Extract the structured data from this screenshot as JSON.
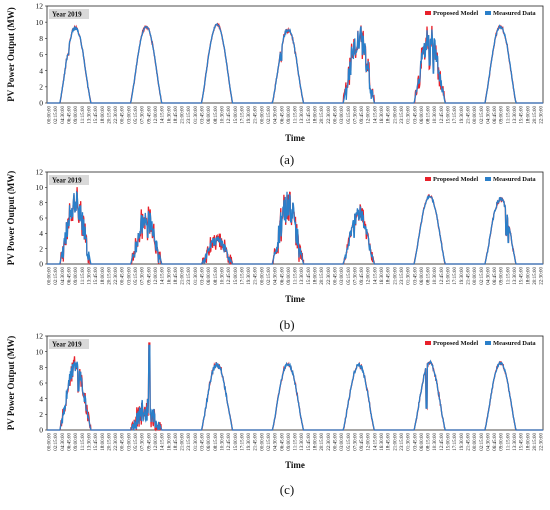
{
  "chart_data": [
    {
      "type": "line",
      "panel_label": "(a)",
      "year_label": "Year 2019",
      "ylabel": "PV Power Output (MW)",
      "xlabel": "Time",
      "ylim": [
        0,
        12
      ],
      "yticks": [
        0,
        2,
        4,
        6,
        8,
        10,
        12
      ],
      "xtick_labels": [
        "00:00:00",
        "02:15:00",
        "04:30:00",
        "06:45:00",
        "09:00:00",
        "11:15:00",
        "13:30:00",
        "15:45:00",
        "18:00:00",
        "20:15:00",
        "22:30:00",
        "00:45:00",
        "03:00:00",
        "05:15:00",
        "07:30:00",
        "09:45:00",
        "12:00:00",
        "14:15:00",
        "16:30:00",
        "18:45:00",
        "21:00:00",
        "23:15:00",
        "01:30:00",
        "03:45:00",
        "06:00:00",
        "08:15:00",
        "10:30:00",
        "12:45:00",
        "15:00:00",
        "17:15:00",
        "19:30:00",
        "21:45:00",
        "00:00:00",
        "02:15:00",
        "04:30:00",
        "06:45:00",
        "09:00:00",
        "11:15:00",
        "13:30:00",
        "15:45:00",
        "18:00:00",
        "20:15:00",
        "22:30:00",
        "00:45:00",
        "03:00:00",
        "05:15:00",
        "07:30:00",
        "09:45:00",
        "12:00:00",
        "14:15:00",
        "16:30:00",
        "18:45:00",
        "21:00:00",
        "23:15:00",
        "01:30:00",
        "03:45:00",
        "06:00:00",
        "08:15:00",
        "10:30:00",
        "12:45:00",
        "15:00:00",
        "17:15:00",
        "19:30:00",
        "21:45:00",
        "00:00:00",
        "02:15:00",
        "04:30:00",
        "06:45:00",
        "09:00:00",
        "11:15:00",
        "13:30:00",
        "15:45:00",
        "18:00:00",
        "20:15:00",
        "22:30:00"
      ],
      "legend": [
        "Proposed Model",
        "Measured Data"
      ],
      "legend_position": "top-right",
      "series": [
        {
          "name": "Proposed Model",
          "color": "#e8202a"
        },
        {
          "name": "Measured Data",
          "color": "#2a7fc9"
        }
      ],
      "days": [
        {
          "peak": 9.5,
          "noise": 0.5,
          "dips": [
            [
              0.18,
              5.0
            ],
            [
              0.27,
              3.5
            ]
          ]
        },
        {
          "peak": 9.5,
          "noise": 0.2,
          "dips": [
            [
              0.25,
              3.0
            ]
          ]
        },
        {
          "peak": 9.8,
          "noise": 0.2,
          "dips": []
        },
        {
          "peak": 9.3,
          "noise": 0.5,
          "dips": [
            [
              0.2,
              2.0
            ],
            [
              0.28,
              4.0
            ]
          ]
        },
        {
          "peak": 9.8,
          "noise": 3.5,
          "dips": [
            [
              0.35,
              2.0
            ],
            [
              0.42,
              3.5
            ],
            [
              0.5,
              3.0
            ]
          ]
        },
        {
          "peak": 9.7,
          "noise": 3.0,
          "dips": [
            [
              0.35,
              4.0
            ],
            [
              0.5,
              5.0
            ],
            [
              0.62,
              6.0
            ]
          ]
        },
        {
          "peak": 9.6,
          "noise": 0.3,
          "dips": []
        }
      ]
    },
    {
      "type": "line",
      "panel_label": "(b)",
      "year_label": "Year 2019",
      "ylabel": "PV Power Output (MW)",
      "xlabel": "Time",
      "ylim": [
        0,
        12
      ],
      "yticks": [
        0,
        2,
        4,
        6,
        8,
        10,
        12
      ],
      "xtick_labels": [
        "00:00:00",
        "02:15:00",
        "04:30:00",
        "06:45:00",
        "09:00:00",
        "11:15:00",
        "13:30:00",
        "15:45:00",
        "18:00:00",
        "20:15:00",
        "22:30:00",
        "00:45:00",
        "03:00:00",
        "05:15:00",
        "07:30:00",
        "09:45:00",
        "12:00:00",
        "14:15:00",
        "16:30:00",
        "18:45:00",
        "21:00:00",
        "23:15:00",
        "01:30:00",
        "03:45:00",
        "06:00:00",
        "08:15:00",
        "10:30:00",
        "12:45:00",
        "15:00:00",
        "17:15:00",
        "19:30:00",
        "21:45:00",
        "00:00:00",
        "02:15:00",
        "04:30:00",
        "06:45:00",
        "09:00:00",
        "11:15:00",
        "13:30:00",
        "15:45:00",
        "18:00:00",
        "20:15:00",
        "22:30:00",
        "00:45:00",
        "03:00:00",
        "05:15:00",
        "07:30:00",
        "09:45:00",
        "12:00:00",
        "14:15:00",
        "16:30:00",
        "18:45:00",
        "21:00:00",
        "23:15:00",
        "01:30:00",
        "03:45:00",
        "06:00:00",
        "08:15:00",
        "10:30:00",
        "12:45:00",
        "15:00:00",
        "17:15:00",
        "19:30:00",
        "21:45:00",
        "00:00:00",
        "02:15:00",
        "04:30:00",
        "06:45:00",
        "09:00:00",
        "11:15:00",
        "13:30:00",
        "15:45:00",
        "18:00:00",
        "20:15:00",
        "22:30:00"
      ],
      "legend": [
        "Proposed Model",
        "Measured Data"
      ],
      "legend_position": "top-right",
      "series": [
        {
          "name": "Proposed Model",
          "color": "#e8202a"
        },
        {
          "name": "Measured Data",
          "color": "#2a7fc9"
        }
      ],
      "days": [
        {
          "peak": 9.8,
          "noise": 3.5,
          "dips": [
            [
              0.25,
              2.5
            ],
            [
              0.7,
              3.0
            ]
          ]
        },
        {
          "peak": 7.5,
          "noise": 3.0,
          "dips": [
            [
              0.55,
              4.0
            ]
          ]
        },
        {
          "peak": 3.8,
          "noise": 1.5,
          "dips": []
        },
        {
          "peak": 9.5,
          "noise": 4.0,
          "dips": [
            [
              0.22,
              3.0
            ],
            [
              0.6,
              4.0
            ]
          ]
        },
        {
          "peak": 7.5,
          "noise": 2.0,
          "dips": [
            [
              0.35,
              4.0
            ]
          ]
        },
        {
          "peak": 9.0,
          "noise": 0.3,
          "dips": []
        },
        {
          "peak": 8.8,
          "noise": 0.6,
          "dips": [
            [
              0.68,
              5.0
            ],
            [
              0.75,
              6.0
            ]
          ]
        }
      ]
    },
    {
      "type": "line",
      "panel_label": "(c)",
      "year_label": "Year 2019",
      "ylabel": "PV Power Output (MW)",
      "xlabel": "Time",
      "ylim": [
        0,
        12
      ],
      "yticks": [
        0,
        2,
        4,
        6,
        8,
        10,
        12
      ],
      "xtick_labels": [
        "00:00:00",
        "02:15:00",
        "04:30:00",
        "06:45:00",
        "09:00:00",
        "11:15:00",
        "13:30:00",
        "15:45:00",
        "18:00:00",
        "20:15:00",
        "22:30:00",
        "00:45:00",
        "03:00:00",
        "05:15:00",
        "07:30:00",
        "09:45:00",
        "12:00:00",
        "14:15:00",
        "16:30:00",
        "18:45:00",
        "21:00:00",
        "23:15:00",
        "01:30:00",
        "03:45:00",
        "06:00:00",
        "08:15:00",
        "10:30:00",
        "12:45:00",
        "15:00:00",
        "17:15:00",
        "19:30:00",
        "21:45:00",
        "00:00:00",
        "02:15:00",
        "04:30:00",
        "06:45:00",
        "09:00:00",
        "11:15:00",
        "13:30:00",
        "15:45:00",
        "18:00:00",
        "20:15:00",
        "22:30:00",
        "00:45:00",
        "03:00:00",
        "05:15:00",
        "07:30:00",
        "09:45:00",
        "12:00:00",
        "14:15:00",
        "16:30:00",
        "18:45:00",
        "21:00:00",
        "23:15:00",
        "01:30:00",
        "03:45:00",
        "06:00:00",
        "08:15:00",
        "10:30:00",
        "12:45:00",
        "15:00:00",
        "17:15:00",
        "19:30:00",
        "21:45:00",
        "00:00:00",
        "02:15:00",
        "04:30:00",
        "06:45:00",
        "09:00:00",
        "11:15:00",
        "13:30:00",
        "15:45:00",
        "18:00:00",
        "20:15:00",
        "22:30:00"
      ],
      "legend": [
        "Proposed Model",
        "Measured Data"
      ],
      "legend_position": "top-right",
      "series": [
        {
          "name": "Proposed Model",
          "color": "#e8202a"
        },
        {
          "name": "Measured Data",
          "color": "#2a7fc9"
        }
      ],
      "days": [
        {
          "peak": 9.0,
          "noise": 2.0,
          "dips": [
            [
              0.22,
              3.5
            ],
            [
              0.6,
              4.0
            ]
          ]
        },
        {
          "peak": 4.5,
          "noise": 3.5,
          "spike": 10.8,
          "dips": []
        },
        {
          "peak": 8.8,
          "noise": 0.8,
          "dips": [
            [
              0.75,
              2.0
            ]
          ]
        },
        {
          "peak": 8.6,
          "noise": 0.4,
          "dips": []
        },
        {
          "peak": 8.6,
          "noise": 0.6,
          "dips": []
        },
        {
          "peak": 8.8,
          "noise": 0.6,
          "dips": [
            [
              0.4,
              6.0
            ]
          ]
        },
        {
          "peak": 8.7,
          "noise": 0.3,
          "dips": []
        }
      ]
    }
  ]
}
